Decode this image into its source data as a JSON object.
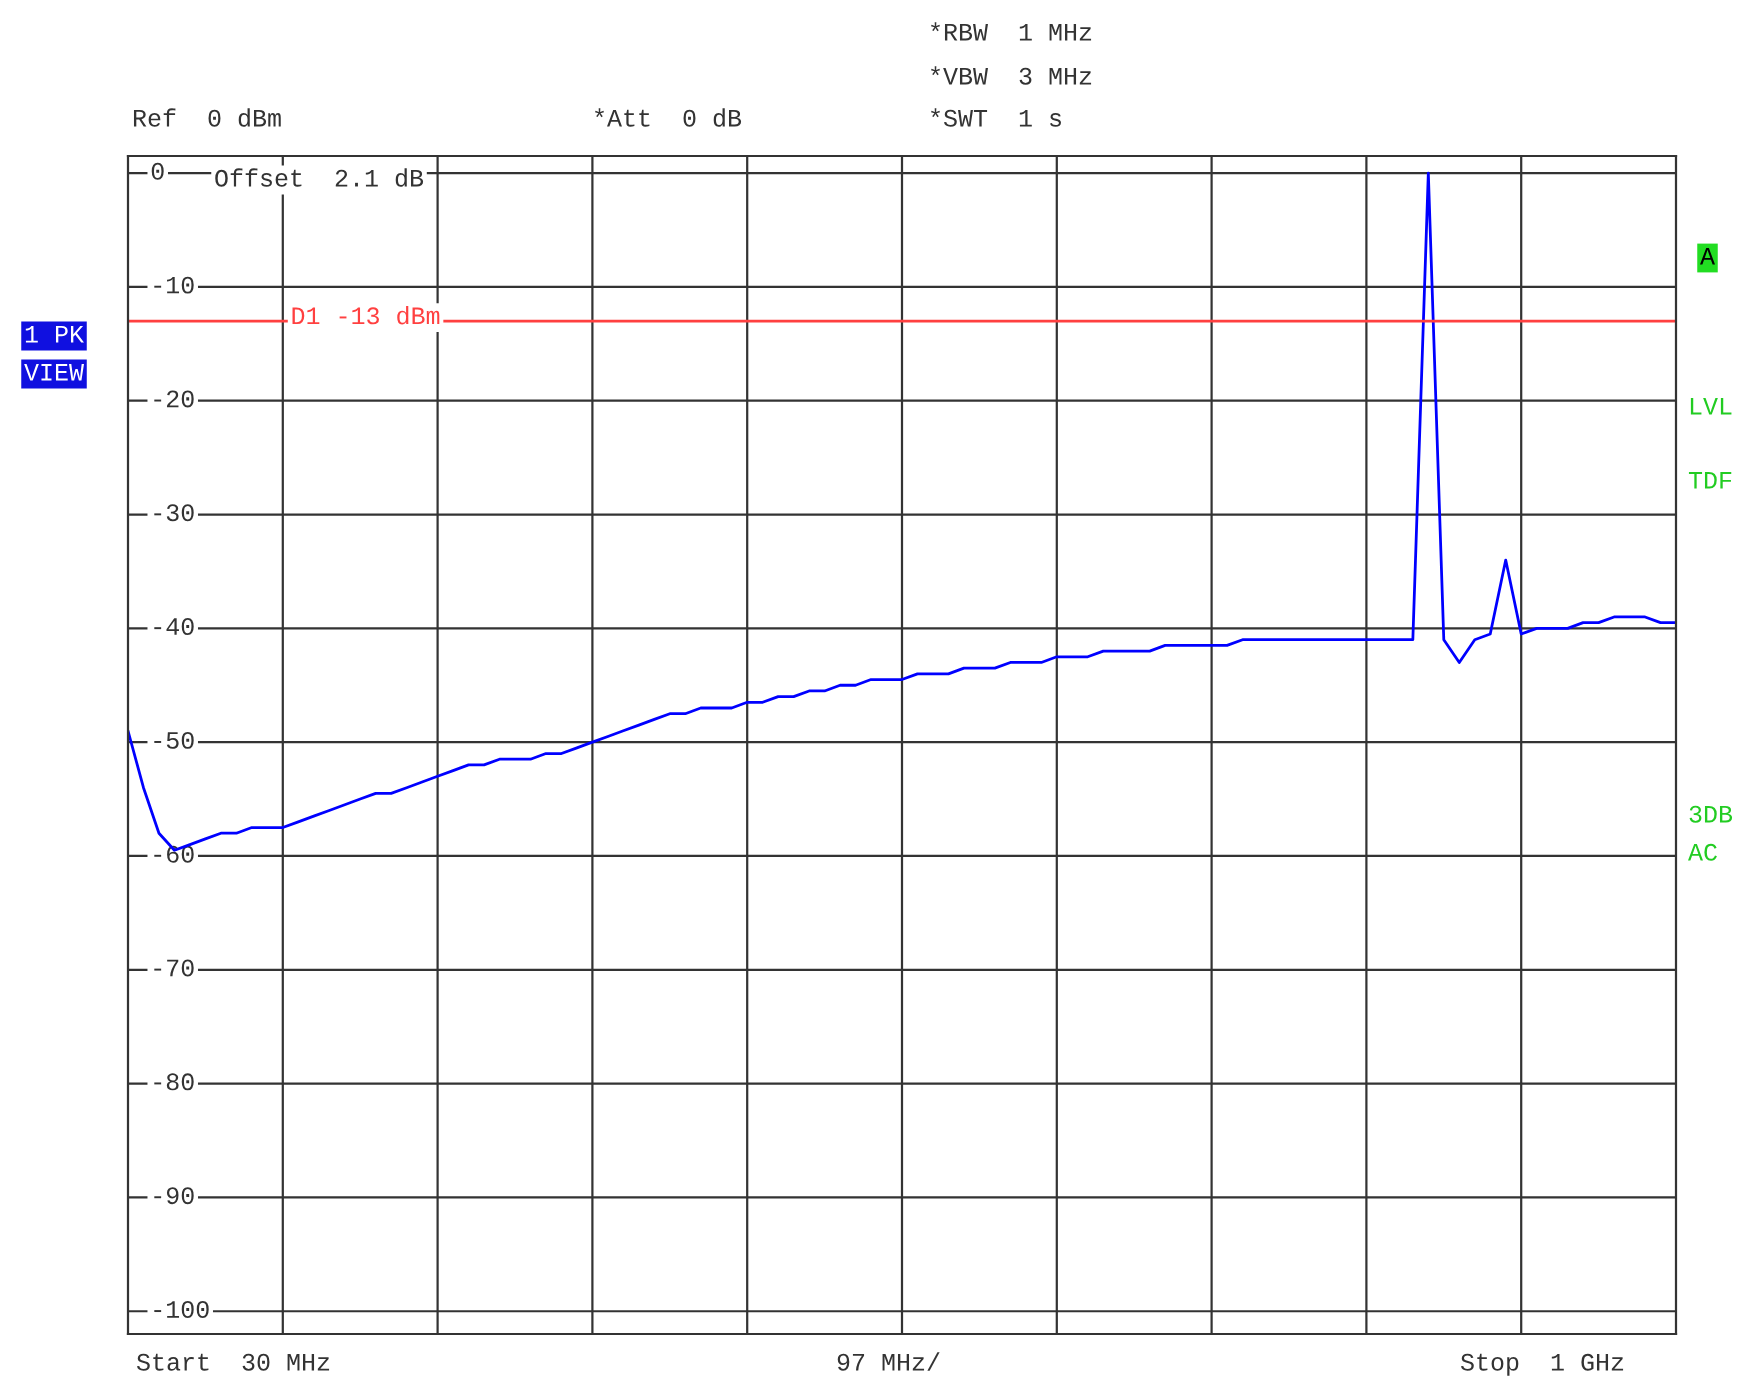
{
  "chart_data": {
    "type": "line",
    "categories": [
      null,
      null,
      null,
      null,
      null,
      null,
      null,
      null,
      null,
      null,
      null,
      null,
      null,
      null,
      null,
      null,
      null,
      null,
      null,
      null,
      null,
      null,
      null,
      null,
      null,
      null,
      null,
      null,
      null,
      null,
      null,
      null,
      null,
      null,
      null,
      null,
      null,
      null,
      null,
      null,
      null,
      null,
      null,
      null,
      null,
      null,
      null,
      null,
      null,
      null,
      null,
      null,
      null,
      null,
      null,
      null,
      null,
      null,
      null,
      null,
      null,
      null,
      null,
      null,
      null,
      null,
      null,
      null,
      null,
      null,
      null,
      null,
      null,
      null,
      null,
      null,
      null,
      null,
      null,
      null,
      null,
      null,
      null,
      null,
      null,
      null,
      null,
      null,
      null,
      null,
      null,
      null,
      null,
      null,
      null,
      null,
      null,
      null,
      null,
      null,
      null
    ],
    "series": [
      {
        "color": "#0000ff",
        "values": [
          -49,
          -54,
          -58,
          -59.5,
          -59,
          -58.5,
          -58,
          -58,
          -57.5,
          -57.5,
          -57.5,
          -57,
          -56.5,
          -56,
          -55.5,
          -55,
          -54.5,
          -54.5,
          -54,
          -53.5,
          -53,
          -52.5,
          -52,
          -52,
          -51.5,
          -51.5,
          -51.5,
          -51,
          -51,
          -50.5,
          -50,
          -49.5,
          -49,
          -48.5,
          -48,
          -47.5,
          -47.5,
          -47,
          -47,
          -47,
          -46.5,
          -46.5,
          -46,
          -46,
          -45.5,
          -45.5,
          -45,
          -45,
          -44.5,
          -44.5,
          -44.5,
          -44,
          -44,
          -44,
          -43.5,
          -43.5,
          -43.5,
          -43,
          -43,
          -43,
          -42.5,
          -42.5,
          -42.5,
          -42,
          -42,
          -42,
          -42,
          -41.5,
          -41.5,
          -41.5,
          -41.5,
          -41.5,
          -41,
          -41,
          -41,
          -41,
          -41,
          -41,
          -41,
          -41,
          -41,
          -41,
          -41,
          -41,
          0,
          -41,
          -43,
          -41,
          -40.5,
          -34,
          -40.5,
          -40,
          -40,
          -40,
          -39.5,
          -39.5,
          -39,
          -39,
          -39,
          -39.5,
          -39.5
        ]
      }
    ],
    "ylim": [
      -102,
      1.5
    ],
    "yticks": [
      0,
      {
        "value": -10,
        "label": "-10"
      },
      {
        "value": -20,
        "label": "-20"
      },
      {
        "value": -30,
        "label": "-30"
      },
      {
        "value": -40,
        "label": "-40"
      },
      {
        "value": -50,
        "label": "-50"
      },
      {
        "value": -60,
        "label": "-60"
      },
      {
        "value": -70,
        "label": "-70"
      },
      {
        "value": -80,
        "label": "-80"
      },
      {
        "value": -90,
        "label": "-90"
      },
      {
        "value": -100,
        "label": "-100"
      }
    ],
    "grid": true,
    "ref_lines": [
      {
        "axis": "y",
        "value": -13,
        "label": "D1 -13 dBm",
        "color": "#ff4040"
      }
    ],
    "annotations": [
      "Ref  0 dBm",
      "*Att  0 dB",
      "*RBW  1 MHz",
      "*VBW  3 MHz",
      "*SWT  1 s",
      "Offset  2.1 dB",
      "1 PK",
      "VIEW",
      "A",
      "LVL",
      "TDF",
      "3DB",
      "AC",
      "97 MHz/",
      "Start  30 MHz",
      "Stop  1 GHz"
    ]
  }
}
